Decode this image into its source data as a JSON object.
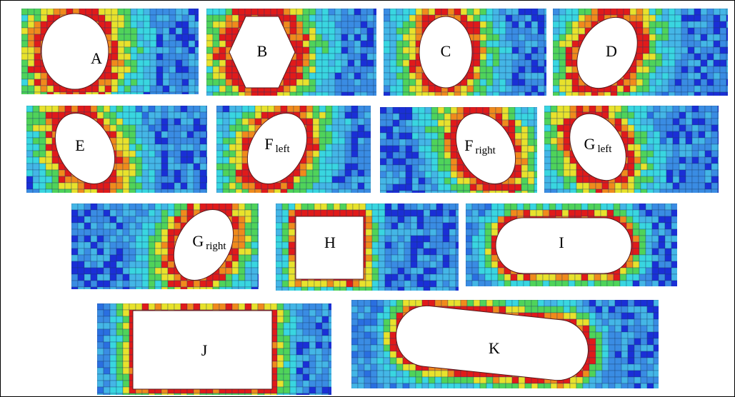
{
  "palette": {
    "deep": "#1a2fd6",
    "mid": "#2a6fe0",
    "blue": "#3a8ce3",
    "light": "#44b6e6",
    "cyan": "#39d6e0",
    "green": "#4fd35a",
    "yellow": "#e8e22c",
    "orange": "#f08a1c",
    "red": "#e01a1a",
    "mesh": "#1a3a6a",
    "hole": "#ffffff"
  },
  "panels": [
    {
      "id": "A",
      "label": "A",
      "sub": "",
      "shape": "ellipse"
    },
    {
      "id": "B",
      "label": "B",
      "sub": "",
      "shape": "hexagon"
    },
    {
      "id": "C",
      "label": "C",
      "sub": "",
      "shape": "ellipse-tall"
    },
    {
      "id": "D",
      "label": "D",
      "sub": "",
      "shape": "ellipse-tilt"
    },
    {
      "id": "E",
      "label": "E",
      "sub": "",
      "shape": "ellipse-tilt"
    },
    {
      "id": "Fl",
      "label": "F",
      "sub": "left",
      "shape": "ellipse-tilt"
    },
    {
      "id": "Fr",
      "label": "F",
      "sub": "right",
      "shape": "ellipse-tilt"
    },
    {
      "id": "Gl",
      "label": "G",
      "sub": "left",
      "shape": "ellipse-tilt"
    },
    {
      "id": "Gr",
      "label": "G",
      "sub": "right",
      "shape": "ellipse-tilt"
    },
    {
      "id": "H",
      "label": "H",
      "sub": "",
      "shape": "rect"
    },
    {
      "id": "I",
      "label": "I",
      "sub": "",
      "shape": "stadium"
    },
    {
      "id": "J",
      "label": "J",
      "sub": "",
      "shape": "rect"
    },
    {
      "id": "K",
      "label": "K",
      "sub": "",
      "shape": "stadium-tilt"
    }
  ]
}
